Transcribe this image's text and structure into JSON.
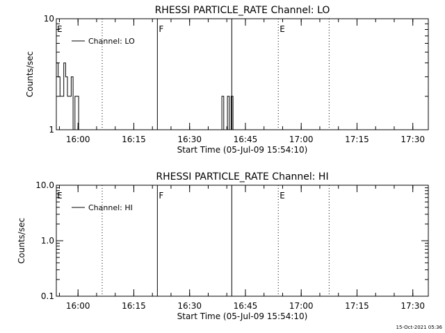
{
  "footer": {
    "timestamp": "15-Oct-2021 05:36"
  },
  "chart_data": [
    {
      "type": "line",
      "title": "RHESSI PARTICLE_RATE Channel: LO",
      "xlabel": "Start Time (05-Jul-09 15:54:10)",
      "ylabel": "Counts/sec",
      "yscale": "log",
      "ylim": [
        1,
        10
      ],
      "yticks": [
        1,
        10
      ],
      "ytick_labels": [
        "1",
        "10"
      ],
      "xlim": [
        "15:54:10",
        "17:34:10"
      ],
      "xticks": [
        "16:00",
        "16:15",
        "16:30",
        "16:45",
        "17:00",
        "17:15",
        "17:30"
      ],
      "legend": {
        "label": "Channel: LO",
        "position": "top-left"
      },
      "markers": [
        {
          "time": "16:06:30",
          "label": "",
          "style": "dotted"
        },
        {
          "time": "16:21:20",
          "label": "F",
          "style": "solid"
        },
        {
          "time": "16:41:20",
          "label": "",
          "style": "solid"
        },
        {
          "time": "16:53:50",
          "label": "E",
          "style": "dotted"
        },
        {
          "time": "17:07:30",
          "label": "",
          "style": "dotted"
        }
      ],
      "corner_label": "E",
      "series": [
        {
          "name": "Channel: LO",
          "x": [
            "15:54:10",
            "15:54:40",
            "15:55:10",
            "15:55:40",
            "15:56:10",
            "15:56:40",
            "15:57:10",
            "15:57:40",
            "15:58:10",
            "15:58:40",
            "15:59:10",
            "15:59:40",
            "16:00:10",
            "16:00:40",
            "16:01:10",
            "16:01:40",
            "16:02:10",
            "16:38:10",
            "16:38:40",
            "16:39:10",
            "16:39:40",
            "16:40:10",
            "16:40:40",
            "16:41:10",
            "16:41:40",
            "16:42:10"
          ],
          "y": [
            4,
            3,
            2,
            2,
            4,
            3,
            2,
            2,
            3,
            1,
            2,
            2,
            1,
            1,
            1,
            1,
            1,
            1,
            2,
            1,
            1,
            2,
            1,
            2,
            1,
            1
          ]
        }
      ]
    },
    {
      "type": "line",
      "title": "RHESSI PARTICLE_RATE Channel: HI",
      "xlabel": "Start Time (05-Jul-09 15:54:10)",
      "ylabel": "Counts/sec",
      "yscale": "log",
      "ylim": [
        0.1,
        10
      ],
      "yticks": [
        0.1,
        1,
        10
      ],
      "ytick_labels": [
        "0.1",
        "1.0",
        "10.0"
      ],
      "xlim": [
        "15:54:10",
        "17:34:10"
      ],
      "xticks": [
        "16:00",
        "16:15",
        "16:30",
        "16:45",
        "17:00",
        "17:15",
        "17:30"
      ],
      "legend": {
        "label": "Channel: HI",
        "position": "top-left"
      },
      "markers": [
        {
          "time": "16:06:30",
          "label": "",
          "style": "dotted"
        },
        {
          "time": "16:21:20",
          "label": "F",
          "style": "solid"
        },
        {
          "time": "16:41:20",
          "label": "",
          "style": "solid"
        },
        {
          "time": "16:53:50",
          "label": "E",
          "style": "dotted"
        },
        {
          "time": "17:07:30",
          "label": "",
          "style": "dotted"
        }
      ],
      "corner_label": "E",
      "series": [
        {
          "name": "Channel: HI",
          "x": [],
          "y": []
        }
      ]
    }
  ]
}
